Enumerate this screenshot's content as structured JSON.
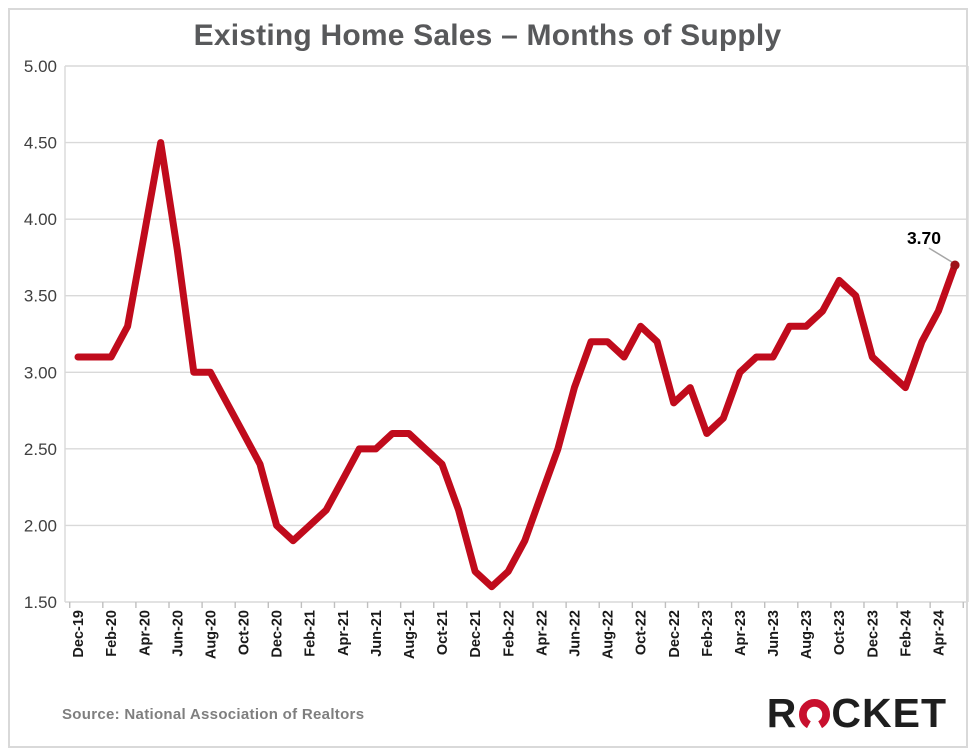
{
  "chart": {
    "title": "Existing Home Sales – Months of Supply",
    "source": "Source: National Association of Realtors",
    "annotation": {
      "last_point_label": "3.70"
    },
    "colors": {
      "line": "#C00B1C",
      "marker": "#9E1118",
      "grid": "#D9D9D9",
      "tick": "#BFBFBF",
      "axis_y_text": "#404040",
      "axis_x_text": "#1A1A1A",
      "title_text": "#58595B",
      "source_text": "#7F7F7F",
      "annotation_text": "#000000",
      "leader": "#A6A6A6",
      "frame": "#D9D9D9",
      "logo_black": "#1E1E1E",
      "logo_red": "#C8102E"
    }
  },
  "logo": {
    "part1": "R",
    "part2": "CKET",
    "alt": "ROCKET"
  },
  "chart_data": {
    "type": "line",
    "title": "Existing Home Sales – Months of Supply",
    "source": "Source: National Association of Realtors",
    "legend": "none",
    "grid": "horizontal",
    "ylim": [
      1.5,
      5.0
    ],
    "ytick_step": 0.5,
    "ytick_labels": [
      "5.00",
      "4.50",
      "4.00",
      "3.50",
      "3.00",
      "2.50",
      "2.00",
      "1.50"
    ],
    "xtick_labels_shown": [
      "Dec-19",
      "Feb-20",
      "Apr-20",
      "Jun-20",
      "Aug-20",
      "Oct-20",
      "Dec-20",
      "Feb-21",
      "Apr-21",
      "Jun-21",
      "Aug-21",
      "Oct-21",
      "Dec-21",
      "Feb-22",
      "Apr-22",
      "Jun-22",
      "Aug-22",
      "Oct-22",
      "Dec-22",
      "Feb-23",
      "Apr-23",
      "Jun-23",
      "Aug-23",
      "Oct-23",
      "Dec-23",
      "Feb-24",
      "Apr-24"
    ],
    "x": [
      "Dec-19",
      "Jan-20",
      "Feb-20",
      "Mar-20",
      "Apr-20",
      "May-20",
      "Jun-20",
      "Jul-20",
      "Aug-20",
      "Sep-20",
      "Oct-20",
      "Nov-20",
      "Dec-20",
      "Jan-21",
      "Feb-21",
      "Mar-21",
      "Apr-21",
      "May-21",
      "Jun-21",
      "Jul-21",
      "Aug-21",
      "Sep-21",
      "Oct-21",
      "Nov-21",
      "Dec-21",
      "Jan-22",
      "Feb-22",
      "Mar-22",
      "Apr-22",
      "May-22",
      "Jun-22",
      "Jul-22",
      "Aug-22",
      "Sep-22",
      "Oct-22",
      "Nov-22",
      "Dec-22",
      "Jan-23",
      "Feb-23",
      "Mar-23",
      "Apr-23",
      "May-23",
      "Jun-23",
      "Jul-23",
      "Aug-23",
      "Sep-23",
      "Oct-23",
      "Nov-23",
      "Dec-23",
      "Jan-24",
      "Feb-24",
      "Mar-24",
      "Apr-24",
      "May-24"
    ],
    "values": [
      3.1,
      3.1,
      3.1,
      3.3,
      3.9,
      4.5,
      3.8,
      3.0,
      3.0,
      2.8,
      2.6,
      2.4,
      2.0,
      1.9,
      2.0,
      2.1,
      2.3,
      2.5,
      2.5,
      2.6,
      2.6,
      2.5,
      2.4,
      2.1,
      1.7,
      1.6,
      1.7,
      1.9,
      2.2,
      2.5,
      2.9,
      3.2,
      3.2,
      3.1,
      3.3,
      3.2,
      2.8,
      2.9,
      2.6,
      2.7,
      3.0,
      3.1,
      3.1,
      3.3,
      3.3,
      3.4,
      3.6,
      3.5,
      3.1,
      3.0,
      2.9,
      3.2,
      3.4,
      3.7
    ],
    "last_point_label": "3.70"
  }
}
